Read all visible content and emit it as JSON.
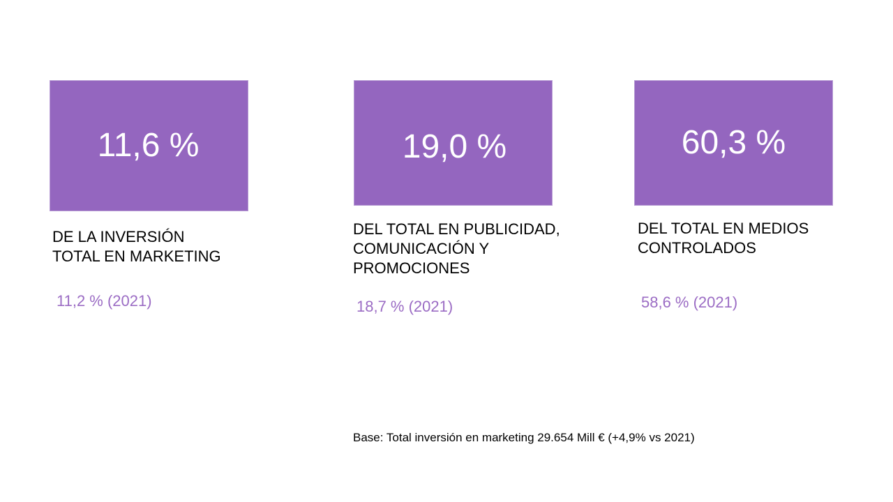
{
  "colors": {
    "card_fill": "#9466bf",
    "card_text": "#ffffff",
    "description_text": "#000000",
    "previous_value_text": "#9b6cc4"
  },
  "kpis": [
    {
      "value": "11,6 %",
      "description": "DE LA INVERSIÓN\nTOTAL EN MARKETING",
      "previous": "11,2 % (2021)"
    },
    {
      "value": "19,0 %",
      "description": "DEL TOTAL EN PUBLICIDAD,\nCOMUNICACIÓN Y\nPROMOCIONES",
      "previous": "18,7 % (2021)"
    },
    {
      "value": "60,3 %",
      "description": "DEL TOTAL EN MEDIOS\nCONTROLADOS",
      "previous": "58,6 % (2021)"
    }
  ],
  "footnote": "Base: Total inversión en marketing 29.654 Mill € (+4,9% vs 2021)"
}
